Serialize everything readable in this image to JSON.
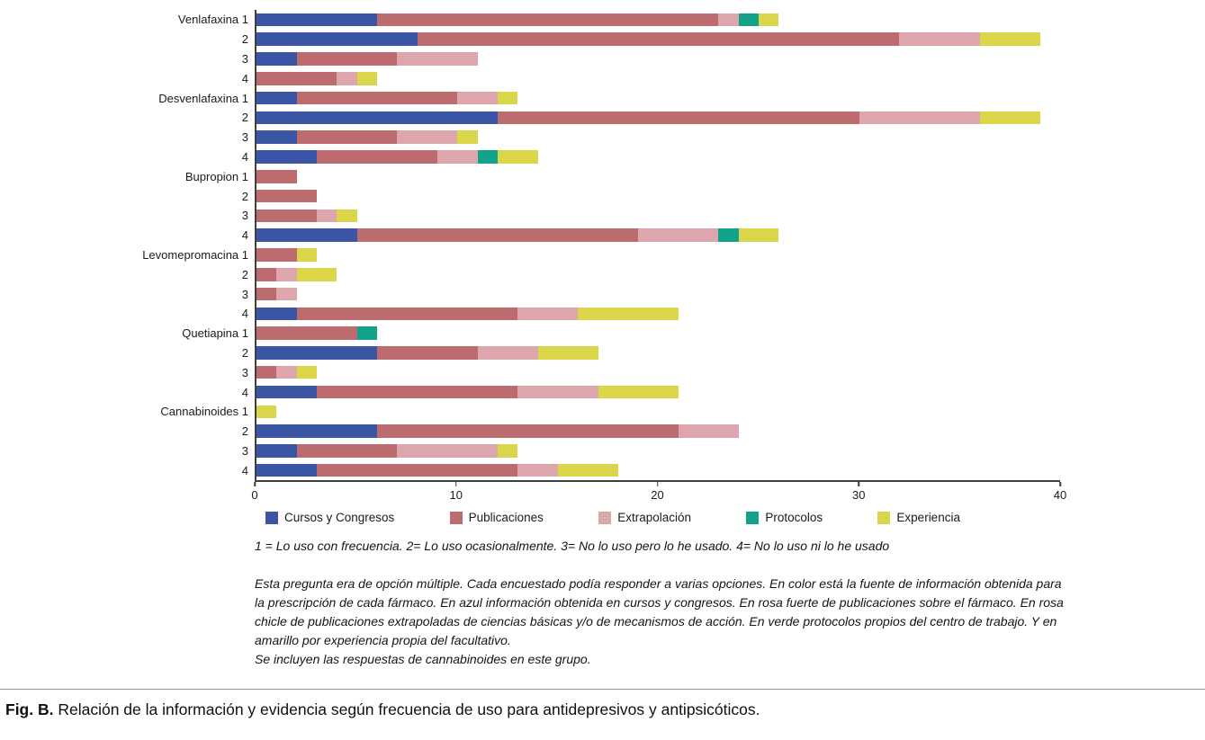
{
  "notes": {
    "frequency_key": "1 = Lo uso con frecuencia. 2= Lo uso ocasionalmente. 3= No lo uso pero lo he usado. 4= No lo uso ni lo he usado",
    "description": "Esta pregunta era de opción múltiple. Cada encuestado podía responder a varias opciones. En color está la fuente de información obtenida para la prescripción de cada fármaco. En azul información obtenida en cursos y congresos. En rosa fuerte de publicaciones sobre el fármaco. En rosa chicle de publicaciones extrapoladas de ciencias básicas y/o de mecanismos de acción. En verde protocolos propios del centro de trabajo. Y en amarillo por experiencia propia del facultativo.",
    "inclusion": "Se incluyen las respuestas de cannabinoides en este grupo."
  },
  "caption": {
    "label": "Fig. B.",
    "text": "Relación de la información y evidencia según frecuencia de uso para antidepresivos y antipsicóticos."
  },
  "chart_data": {
    "type": "bar",
    "orientation": "horizontal",
    "stacked": true,
    "grid": false,
    "legend_position": "bottom",
    "xlim": [
      0,
      40
    ],
    "xticks": [
      0,
      10,
      20,
      30,
      40
    ],
    "series_names": [
      "Cursos y Congresos",
      "Publicaciones",
      "Extrapolación",
      "Protocolos",
      "Experiencia"
    ],
    "series_colors": [
      "#3a55a4",
      "#bc6b6f",
      "#dda6ad",
      "#12a38b",
      "#dbd549"
    ],
    "rows": [
      {
        "label": "Venlafaxina 1",
        "drug": "Venlafaxina",
        "frequency": 1,
        "values": [
          6,
          17,
          1,
          1,
          1
        ]
      },
      {
        "label": "2",
        "drug": "Venlafaxina",
        "frequency": 2,
        "values": [
          8,
          24,
          4,
          0,
          3
        ]
      },
      {
        "label": "3",
        "drug": "Venlafaxina",
        "frequency": 3,
        "values": [
          2,
          5,
          4,
          0,
          0
        ]
      },
      {
        "label": "4",
        "drug": "Venlafaxina",
        "frequency": 4,
        "values": [
          0,
          4,
          1,
          0,
          1
        ]
      },
      {
        "label": "Desvenlafaxina 1",
        "drug": "Desvenlafaxina",
        "frequency": 1,
        "values": [
          2,
          8,
          2,
          0,
          1
        ]
      },
      {
        "label": "2",
        "drug": "Desvenlafaxina",
        "frequency": 2,
        "values": [
          12,
          18,
          6,
          0,
          3
        ]
      },
      {
        "label": "3",
        "drug": "Desvenlafaxina",
        "frequency": 3,
        "values": [
          2,
          5,
          3,
          0,
          1
        ]
      },
      {
        "label": "4",
        "drug": "Desvenlafaxina",
        "frequency": 4,
        "values": [
          3,
          6,
          2,
          1,
          2
        ]
      },
      {
        "label": "Bupropion 1",
        "drug": "Bupropion",
        "frequency": 1,
        "values": [
          0,
          2,
          0,
          0,
          0
        ]
      },
      {
        "label": "2",
        "drug": "Bupropion",
        "frequency": 2,
        "values": [
          0,
          3,
          0,
          0,
          0
        ]
      },
      {
        "label": "3",
        "drug": "Bupropion",
        "frequency": 3,
        "values": [
          0,
          3,
          1,
          0,
          1
        ]
      },
      {
        "label": "4",
        "drug": "Bupropion",
        "frequency": 4,
        "values": [
          5,
          14,
          4,
          1,
          2
        ]
      },
      {
        "label": "Levomepromacina 1",
        "drug": "Levomepromacina",
        "frequency": 1,
        "values": [
          0,
          2,
          0,
          0,
          1
        ]
      },
      {
        "label": "2",
        "drug": "Levomepromacina",
        "frequency": 2,
        "values": [
          0,
          1,
          1,
          0,
          2
        ]
      },
      {
        "label": "3",
        "drug": "Levomepromacina",
        "frequency": 3,
        "values": [
          0,
          1,
          1,
          0,
          0
        ]
      },
      {
        "label": "4",
        "drug": "Levomepromacina",
        "frequency": 4,
        "values": [
          2,
          11,
          3,
          0,
          5
        ]
      },
      {
        "label": "Quetiapina 1",
        "drug": "Quetiapina",
        "frequency": 1,
        "values": [
          0,
          5,
          0,
          1,
          0
        ]
      },
      {
        "label": "2",
        "drug": "Quetiapina",
        "frequency": 2,
        "values": [
          6,
          5,
          3,
          0,
          3
        ]
      },
      {
        "label": "3",
        "drug": "Quetiapina",
        "frequency": 3,
        "values": [
          0,
          1,
          1,
          0,
          1
        ]
      },
      {
        "label": "4",
        "drug": "Quetiapina",
        "frequency": 4,
        "values": [
          3,
          10,
          4,
          0,
          4
        ]
      },
      {
        "label": "Cannabinoides 1",
        "drug": "Cannabinoides",
        "frequency": 1,
        "values": [
          0,
          0,
          0,
          0,
          1
        ]
      },
      {
        "label": "2",
        "drug": "Cannabinoides",
        "frequency": 2,
        "values": [
          6,
          15,
          3,
          0,
          0
        ]
      },
      {
        "label": "3",
        "drug": "Cannabinoides",
        "frequency": 3,
        "values": [
          2,
          5,
          5,
          0,
          1
        ]
      },
      {
        "label": "4",
        "drug": "Cannabinoides",
        "frequency": 4,
        "values": [
          3,
          10,
          2,
          0,
          3
        ]
      }
    ]
  }
}
